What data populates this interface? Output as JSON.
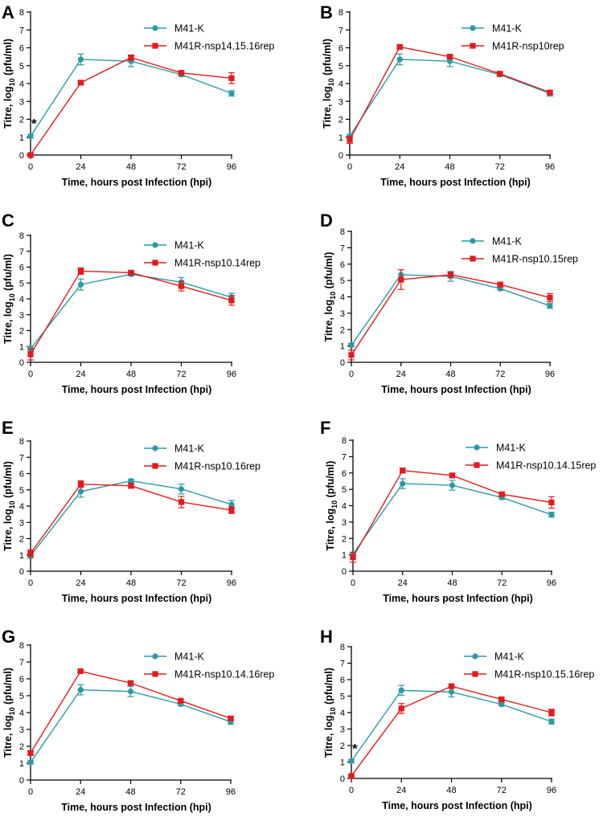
{
  "chart_data": [
    {
      "panel": "A",
      "type": "line",
      "title": "",
      "xlabel": "Time, hours post Infection (hpi)",
      "ylabel": "Titre, log10 (pfu/ml)",
      "ylabel_main": "Titre, log",
      "ylabel_sub": "10",
      "ylabel_tail": " (pfu/ml)",
      "x": [
        0,
        24,
        48,
        72,
        96
      ],
      "xticks": [
        "0",
        "24",
        "48",
        "72",
        "96"
      ],
      "yticks": [
        "0",
        "1",
        "2",
        "3",
        "4",
        "5",
        "6",
        "7",
        "8"
      ],
      "xlim": [
        0,
        96
      ],
      "ylim": [
        0,
        8
      ],
      "legend_position": "top-right",
      "annotations": [
        {
          "text": "*",
          "x": 0,
          "y": 1.1
        }
      ],
      "series": [
        {
          "name": "M41-K",
          "color": "#2a9ba6",
          "marker": "circle",
          "values": [
            1.05,
            5.35,
            5.25,
            4.5,
            3.45
          ],
          "errors": [
            0.1,
            0.3,
            0.3,
            0.1,
            0.15
          ]
        },
        {
          "name": "M41R-nsp14.15.16rep",
          "color": "#e41a1c",
          "marker": "square",
          "values": [
            0.0,
            4.05,
            5.45,
            4.6,
            4.3
          ],
          "errors": [
            0.05,
            0.1,
            0.15,
            0.1,
            0.3
          ]
        }
      ]
    },
    {
      "panel": "B",
      "type": "line",
      "title": "",
      "xlabel": "Time, hours post Infection (hpi)",
      "ylabel": "Titre, log10 (pfu/ml)",
      "ylabel_main": "Titre, log",
      "ylabel_sub": "10",
      "ylabel_tail": " (pfu/ml)",
      "x": [
        0,
        24,
        48,
        72,
        96
      ],
      "xticks": [
        "0",
        "24",
        "48",
        "72",
        "96"
      ],
      "yticks": [
        "0",
        "1",
        "2",
        "3",
        "4",
        "5",
        "6",
        "7",
        "8"
      ],
      "xlim": [
        0,
        96
      ],
      "ylim": [
        0,
        8
      ],
      "legend_position": "top-right",
      "annotations": [],
      "series": [
        {
          "name": "M41-K",
          "color": "#2a9ba6",
          "marker": "circle",
          "values": [
            1.05,
            5.35,
            5.25,
            4.5,
            3.45
          ],
          "errors": [
            0.1,
            0.3,
            0.3,
            0.1,
            0.15
          ]
        },
        {
          "name": "M41R-nsp10rep",
          "color": "#e41a1c",
          "marker": "square",
          "values": [
            0.85,
            6.05,
            5.5,
            4.55,
            3.5
          ],
          "errors": [
            0.2,
            0.1,
            0.1,
            0.1,
            0.1
          ]
        }
      ]
    },
    {
      "panel": "C",
      "type": "line",
      "title": "",
      "xlabel": "Time, hours post Infection (hpi)",
      "ylabel": "Titre, log10 (pfu/ml)",
      "ylabel_main": "Titre, log",
      "ylabel_sub": "10",
      "ylabel_tail": " (pfu/ml)",
      "x": [
        0,
        24,
        48,
        72,
        96
      ],
      "xticks": [
        "0",
        "24",
        "48",
        "72",
        "96"
      ],
      "yticks": [
        "0",
        "1",
        "2",
        "3",
        "4",
        "5",
        "6",
        "7",
        "8"
      ],
      "xlim": [
        0,
        96
      ],
      "ylim": [
        0,
        8
      ],
      "legend_position": "top-right",
      "annotations": [],
      "series": [
        {
          "name": "M41-K",
          "color": "#2a9ba6",
          "marker": "circle",
          "values": [
            0.85,
            4.9,
            5.55,
            5.05,
            4.1
          ],
          "errors": [
            0.15,
            0.35,
            0.1,
            0.3,
            0.25
          ]
        },
        {
          "name": "M41R-nsp10.14rep",
          "color": "#e41a1c",
          "marker": "square",
          "values": [
            0.5,
            5.75,
            5.65,
            4.8,
            3.9
          ],
          "errors": [
            0.35,
            0.2,
            0.1,
            0.3,
            0.3
          ]
        }
      ]
    },
    {
      "panel": "D",
      "type": "line",
      "title": "",
      "xlabel": "Time, hours post Infection (hpi)",
      "ylabel": "Titre, log10 (pfu/ml)",
      "ylabel_main": "Titre, log",
      "ylabel_sub": "10",
      "ylabel_tail": " (pfu/ml)",
      "x": [
        0,
        24,
        48,
        72,
        96
      ],
      "xticks": [
        "0",
        "24",
        "48",
        "72",
        "96"
      ],
      "yticks": [
        "0",
        "1",
        "2",
        "3",
        "4",
        "5",
        "6",
        "7",
        "8"
      ],
      "xlim": [
        0,
        96
      ],
      "ylim": [
        0,
        8
      ],
      "legend_position": "top-right",
      "annotations": [],
      "series": [
        {
          "name": "M41-K",
          "color": "#2a9ba6",
          "marker": "circle",
          "values": [
            1.05,
            5.35,
            5.25,
            4.5,
            3.45
          ],
          "errors": [
            0.1,
            0.3,
            0.3,
            0.1,
            0.15
          ]
        },
        {
          "name": "M41R-nsp10.15rep",
          "color": "#e41a1c",
          "marker": "square",
          "values": [
            0.45,
            5.05,
            5.35,
            4.75,
            3.95
          ],
          "errors": [
            0.3,
            0.6,
            0.15,
            0.1,
            0.25
          ]
        }
      ]
    },
    {
      "panel": "E",
      "type": "line",
      "title": "",
      "xlabel": "Time, hours post Infection (hpi)",
      "ylabel": "Titre, log10 (pfu/ml)",
      "ylabel_main": "Titre, log",
      "ylabel_sub": "10",
      "ylabel_tail": " (pfu/ml)",
      "x": [
        0,
        24,
        48,
        72,
        96
      ],
      "xticks": [
        "0",
        "24",
        "48",
        "72",
        "96"
      ],
      "yticks": [
        "0",
        "1",
        "2",
        "3",
        "4",
        "5",
        "6",
        "7",
        "8"
      ],
      "xlim": [
        0,
        96
      ],
      "ylim": [
        0,
        8
      ],
      "legend_position": "top-right",
      "annotations": [],
      "series": [
        {
          "name": "M41-K",
          "color": "#2a9ba6",
          "marker": "circle",
          "values": [
            0.95,
            4.9,
            5.55,
            5.05,
            4.1
          ],
          "errors": [
            0.15,
            0.35,
            0.1,
            0.3,
            0.25
          ]
        },
        {
          "name": "M41R-nsp10.16rep",
          "color": "#e41a1c",
          "marker": "square",
          "values": [
            1.1,
            5.35,
            5.25,
            4.25,
            3.75
          ],
          "errors": [
            0.2,
            0.2,
            0.15,
            0.35,
            0.2
          ]
        }
      ]
    },
    {
      "panel": "F",
      "type": "line",
      "title": "",
      "xlabel": "Time, hours post Infection (hpi)",
      "ylabel": "Titre, log10 (pfu/ml)",
      "ylabel_main": "Titre, log",
      "ylabel_sub": "10",
      "ylabel_tail": " (pfu/ml)",
      "x": [
        0,
        24,
        48,
        72,
        96
      ],
      "xticks": [
        "0",
        "24",
        "48",
        "72",
        "96"
      ],
      "yticks": [
        "0",
        "1",
        "2",
        "3",
        "4",
        "5",
        "6",
        "7",
        "8"
      ],
      "xlim": [
        0,
        96
      ],
      "ylim": [
        0,
        8
      ],
      "legend_position": "top-right",
      "annotations": [],
      "series": [
        {
          "name": "M41-K",
          "color": "#2a9ba6",
          "marker": "circle",
          "values": [
            1.05,
            5.35,
            5.25,
            4.5,
            3.45
          ],
          "errors": [
            0.1,
            0.3,
            0.3,
            0.1,
            0.15
          ]
        },
        {
          "name": "M41R-nsp10.14.15rep",
          "color": "#e41a1c",
          "marker": "square",
          "values": [
            0.85,
            6.15,
            5.85,
            4.7,
            4.2
          ],
          "errors": [
            0.3,
            0.15,
            0.1,
            0.1,
            0.35
          ]
        }
      ]
    },
    {
      "panel": "G",
      "type": "line",
      "title": "",
      "xlabel": "Time, hours post Infection (hpi)",
      "ylabel": "Titre, log10 (pfu/ml)",
      "ylabel_main": "Titre, log",
      "ylabel_sub": "10",
      "ylabel_tail": " (pfu/ml)",
      "x": [
        0,
        24,
        48,
        72,
        96
      ],
      "xticks": [
        "0",
        "24",
        "48",
        "72",
        "96"
      ],
      "yticks": [
        "0",
        "1",
        "2",
        "3",
        "4",
        "5",
        "6",
        "7",
        "8"
      ],
      "xlim": [
        0,
        96
      ],
      "ylim": [
        0,
        8
      ],
      "legend_position": "top-right",
      "annotations": [],
      "series": [
        {
          "name": "M41-K",
          "color": "#2a9ba6",
          "marker": "circle",
          "values": [
            1.05,
            5.35,
            5.25,
            4.5,
            3.45
          ],
          "errors": [
            0.1,
            0.3,
            0.3,
            0.1,
            0.15
          ]
        },
        {
          "name": "M41R-nsp10.14.16rep",
          "color": "#e41a1c",
          "marker": "square",
          "values": [
            1.6,
            6.45,
            5.75,
            4.7,
            3.65
          ],
          "errors": [
            0.1,
            0.05,
            0.1,
            0.1,
            0.1
          ]
        }
      ]
    },
    {
      "panel": "H",
      "type": "line",
      "title": "",
      "xlabel": "Time, hours post Infection (hpi)",
      "ylabel": "Titre, log10 (pfu/ml)",
      "ylabel_main": "Titre, log",
      "ylabel_sub": "10",
      "ylabel_tail": " (pfu/ml)",
      "x": [
        0,
        24,
        48,
        72,
        96
      ],
      "xticks": [
        "0",
        "24",
        "48",
        "72",
        "96"
      ],
      "yticks": [
        "0",
        "1",
        "2",
        "3",
        "4",
        "5",
        "6",
        "7",
        "8"
      ],
      "xlim": [
        0,
        96
      ],
      "ylim": [
        0,
        8
      ],
      "legend_position": "top-right",
      "annotations": [
        {
          "text": "*",
          "x": 0,
          "y": 1.1
        }
      ],
      "series": [
        {
          "name": "M41-K",
          "color": "#2a9ba6",
          "marker": "circle",
          "values": [
            1.05,
            5.35,
            5.25,
            4.5,
            3.45
          ],
          "errors": [
            0.1,
            0.3,
            0.3,
            0.1,
            0.15
          ]
        },
        {
          "name": "M41R-nsp10.15.16rep",
          "color": "#e41a1c",
          "marker": "square",
          "values": [
            0.15,
            4.25,
            5.6,
            4.8,
            4.0
          ],
          "errors": [
            0.05,
            0.3,
            0.1,
            0.1,
            0.2
          ]
        }
      ]
    }
  ]
}
